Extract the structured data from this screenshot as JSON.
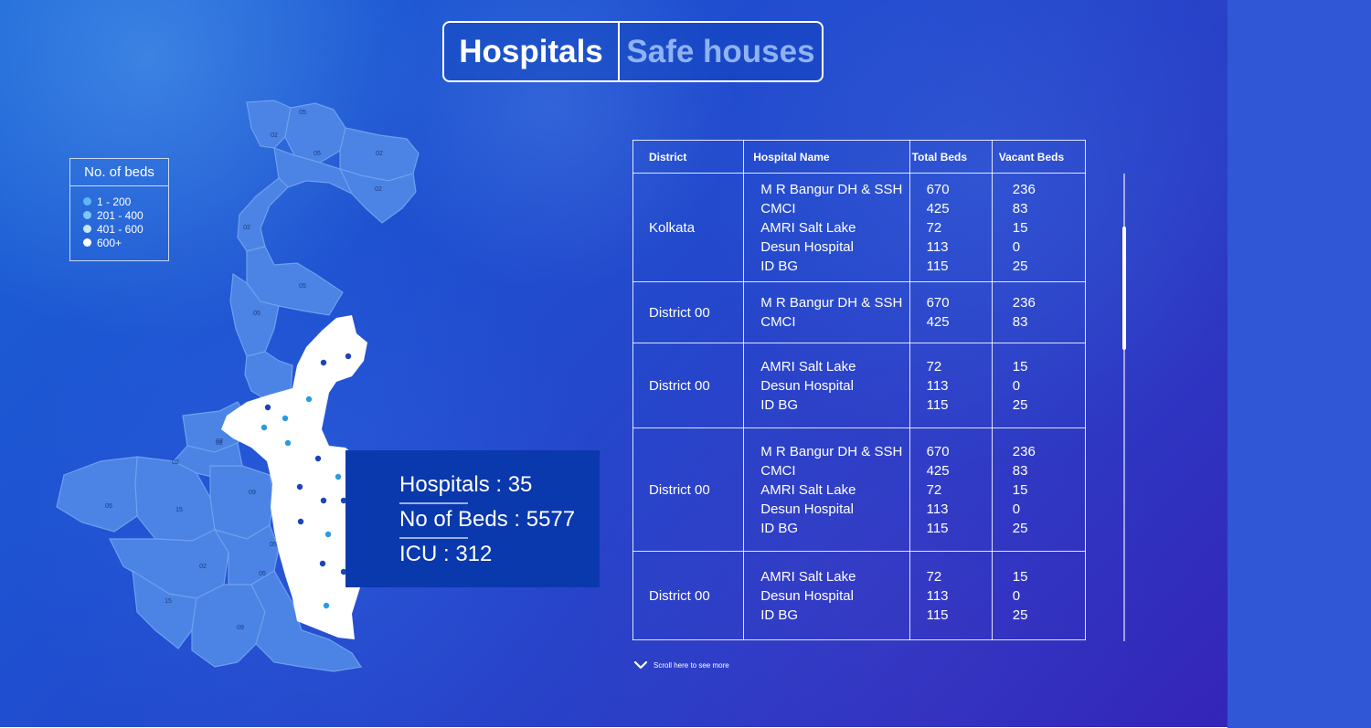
{
  "tabs": {
    "hospitals": "Hospitals",
    "safe_houses": "Safe houses"
  },
  "legend": {
    "title": "No. of beds",
    "items": [
      {
        "label": "1 - 200",
        "color": "#5fb7f2"
      },
      {
        "label": "201 - 400",
        "color": "#7ec6f5"
      },
      {
        "label": "401 - 600",
        "color": "#c5e7fb"
      },
      {
        "label": "600+",
        "color": "#ffffff"
      }
    ]
  },
  "map": {
    "region_labels": [
      "05",
      "02",
      "05",
      "02",
      "02",
      "02",
      "05",
      "05",
      "02",
      "02",
      "09",
      "05",
      "15",
      "05",
      "02",
      "05",
      "15",
      "09",
      "02"
    ],
    "highlight_color": "#ffffff",
    "marker_colors": [
      "#1a44b8",
      "#2a9be0"
    ]
  },
  "info": {
    "hospitals": "Hospitals : 35",
    "beds": "No of Beds : 5577",
    "icu": "ICU : 312"
  },
  "table": {
    "headers": {
      "district": "District",
      "hospital": "Hospital Name",
      "total": "Total Beds",
      "vacant": "Vacant Beds"
    },
    "rows": [
      {
        "district": "Kolkata",
        "hospitals": [
          "M R Bangur DH & SSH",
          "CMCI",
          "AMRI Salt Lake",
          "Desun Hospital",
          "ID BG"
        ],
        "total": [
          "670",
          "425",
          "72",
          "113",
          "115"
        ],
        "vacant": [
          "236",
          "83",
          "15",
          "0",
          "25"
        ]
      },
      {
        "district": "District 00",
        "hospitals": [
          "M R Bangur DH & SSH",
          "CMCI"
        ],
        "total": [
          "670",
          "425"
        ],
        "vacant": [
          "236",
          "83"
        ]
      },
      {
        "district": "District 00",
        "hospitals": [
          "AMRI Salt Lake",
          "Desun Hospital",
          "ID BG"
        ],
        "total": [
          "72",
          "113",
          "115"
        ],
        "vacant": [
          "15",
          "0",
          "25"
        ]
      },
      {
        "district": "District 00",
        "hospitals": [
          "M R Bangur DH & SSH",
          "CMCI",
          "AMRI Salt Lake",
          "Desun Hospital",
          "ID BG"
        ],
        "total": [
          "670",
          "425",
          "72",
          "113",
          "115"
        ],
        "vacant": [
          "236",
          "83",
          "15",
          "0",
          "25"
        ]
      },
      {
        "district": "District 00",
        "hospitals": [
          "AMRI Salt Lake",
          "Desun Hospital",
          "ID BG"
        ],
        "total": [
          "72",
          "113",
          "115"
        ],
        "vacant": [
          "15",
          "0",
          "25"
        ]
      }
    ]
  },
  "scroll_hint": {
    "label": "Scroll here to see more",
    "icon": "chevron-down-icon"
  },
  "colors": {
    "background_start": "#1a63d6",
    "background_end": "#3524b8",
    "info_box": "#0a38ad",
    "side_panel": "#3057d6"
  }
}
